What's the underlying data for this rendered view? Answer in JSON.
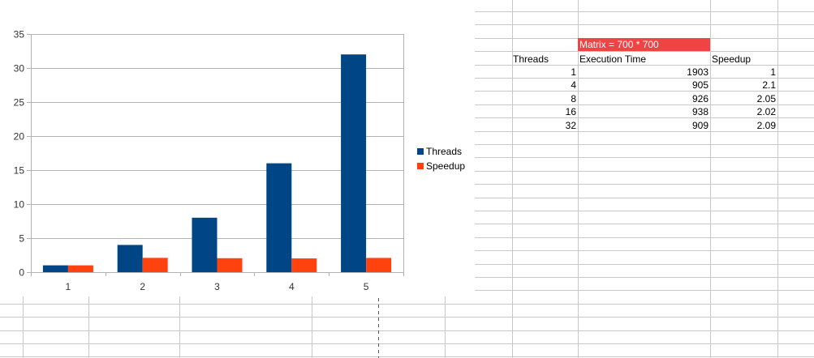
{
  "colors": {
    "threads": "#004586",
    "speedup": "#ff420e",
    "header_fill": "#ee4444",
    "grid": "#c8c8c8",
    "chart_grid": "#b3b3b3"
  },
  "chart_data": {
    "type": "bar",
    "categories": [
      "1",
      "2",
      "3",
      "4",
      "5"
    ],
    "series": [
      {
        "name": "Threads",
        "values": [
          1,
          4,
          8,
          16,
          32
        ]
      },
      {
        "name": "Speedup",
        "values": [
          1,
          2.1,
          2.05,
          2.02,
          2.09
        ]
      }
    ],
    "title": "",
    "xlabel": "",
    "ylabel": "",
    "ylim": [
      0,
      35
    ],
    "yticks": [
      0,
      5,
      10,
      15,
      20,
      25,
      30,
      35
    ],
    "grid": true,
    "legend": "right"
  },
  "table": {
    "header": "Matrix = 700 * 700",
    "columns": [
      "Threads",
      "Execution Time",
      "Speedup"
    ],
    "rows": [
      [
        "1",
        "1903",
        "1"
      ],
      [
        "4",
        "905",
        "2.1"
      ],
      [
        "8",
        "926",
        "2.05"
      ],
      [
        "16",
        "938",
        "2.02"
      ],
      [
        "32",
        "909",
        "2.09"
      ]
    ]
  }
}
